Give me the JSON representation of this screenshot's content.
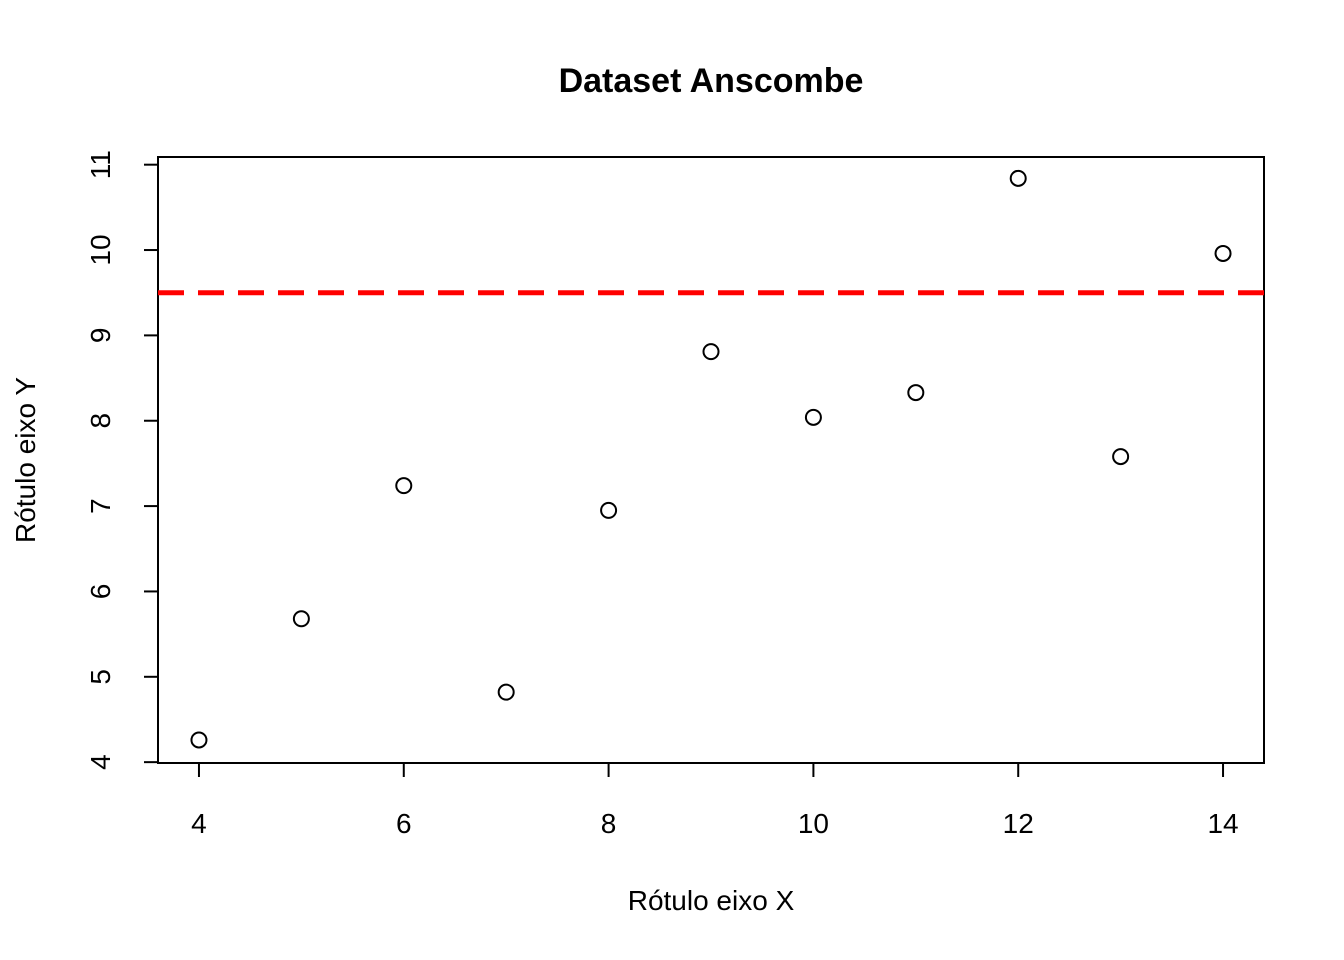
{
  "chart_data": {
    "type": "scatter",
    "title": "Dataset Anscombe",
    "xlabel": "Rótulo eixo X",
    "ylabel": "Rótulo eixo Y",
    "xlim": [
      3.6,
      14.4
    ],
    "ylim": [
      3.99,
      11.09
    ],
    "x_ticks": [
      4,
      6,
      8,
      10,
      12,
      14
    ],
    "y_ticks": [
      4,
      5,
      6,
      7,
      8,
      9,
      10,
      11
    ],
    "grid": false,
    "series": [
      {
        "x": [
          4,
          5,
          6,
          7,
          8,
          9,
          10,
          11,
          12,
          13,
          14
        ],
        "y": [
          4.26,
          5.68,
          7.24,
          4.82,
          6.95,
          8.81,
          8.04,
          8.33,
          10.84,
          7.58,
          9.96
        ],
        "marker": "open-circle",
        "color": "#000000"
      }
    ],
    "reference_line": {
      "orientation": "horizontal",
      "y": 9.5,
      "style": "dashed",
      "color": "#ff0000"
    }
  }
}
